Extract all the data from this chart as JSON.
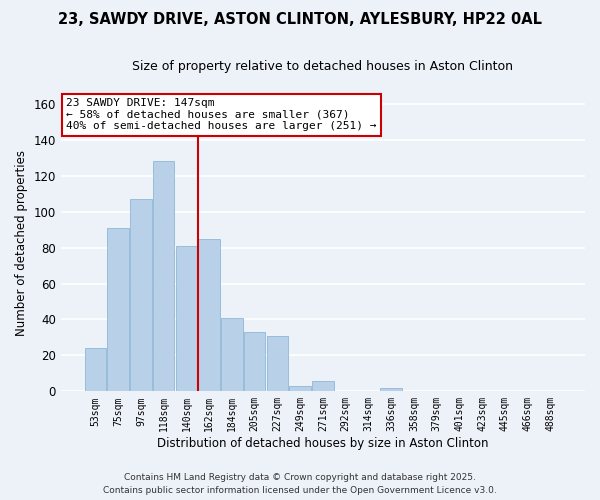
{
  "title": "23, SAWDY DRIVE, ASTON CLINTON, AYLESBURY, HP22 0AL",
  "subtitle": "Size of property relative to detached houses in Aston Clinton",
  "xlabel": "Distribution of detached houses by size in Aston Clinton",
  "ylabel": "Number of detached properties",
  "bin_labels": [
    "53sqm",
    "75sqm",
    "97sqm",
    "118sqm",
    "140sqm",
    "162sqm",
    "184sqm",
    "205sqm",
    "227sqm",
    "249sqm",
    "271sqm",
    "292sqm",
    "314sqm",
    "336sqm",
    "358sqm",
    "379sqm",
    "401sqm",
    "423sqm",
    "445sqm",
    "466sqm",
    "488sqm"
  ],
  "bar_heights": [
    24,
    91,
    107,
    128,
    81,
    85,
    41,
    33,
    31,
    3,
    6,
    0,
    0,
    2,
    0,
    0,
    0,
    0,
    0,
    0,
    0
  ],
  "bar_color": "#b8d0e8",
  "bar_edge_color": "#8fb8d8",
  "vline_x": 4.5,
  "vline_color": "#cc0000",
  "annotation_title": "23 SAWDY DRIVE: 147sqm",
  "annotation_line1": "← 58% of detached houses are smaller (367)",
  "annotation_line2": "40% of semi-detached houses are larger (251) →",
  "annotation_box_color": "#ffffff",
  "annotation_box_edge": "#cc0000",
  "ylim": [
    0,
    165
  ],
  "yticks": [
    0,
    20,
    40,
    60,
    80,
    100,
    120,
    140,
    160
  ],
  "footer_line1": "Contains HM Land Registry data © Crown copyright and database right 2025.",
  "footer_line2": "Contains public sector information licensed under the Open Government Licence v3.0.",
  "bg_color": "#edf2f9",
  "grid_color": "#ffffff",
  "title_fontsize": 10.5,
  "subtitle_fontsize": 9,
  "annotation_fontsize": 8,
  "axis_label_fontsize": 8.5,
  "tick_fontsize": 7,
  "footer_fontsize": 6.5
}
